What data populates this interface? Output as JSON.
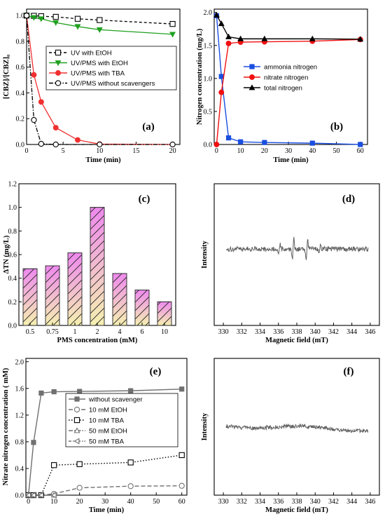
{
  "chart_data": [
    {
      "panel": "(a)",
      "type": "line",
      "xlabel": "Time (min)",
      "ylabel": "[CBZ]/[CBZ]₀",
      "xlim": [
        0,
        21
      ],
      "ylim": [
        0,
        1.05
      ],
      "xticks": [
        0,
        5,
        10,
        15,
        20
      ],
      "yticks": [
        0.0,
        0.2,
        0.4,
        0.6,
        0.8,
        1.0
      ],
      "legend_position": "center-right",
      "series": [
        {
          "name": "UV with EtOH",
          "color": "#000000",
          "marker": "square-open",
          "dash": "4,3",
          "x": [
            0,
            1,
            2,
            4,
            7,
            10,
            20
          ],
          "y": [
            1.0,
            0.998,
            0.995,
            0.99,
            0.975,
            0.965,
            0.935
          ]
        },
        {
          "name": "UV/PMS with EtOH",
          "color": "#20a020",
          "marker": "triangle-down",
          "dash": "",
          "x": [
            0,
            1,
            2,
            4,
            7,
            10,
            20
          ],
          "y": [
            1.0,
            0.985,
            0.975,
            0.945,
            0.915,
            0.89,
            0.855
          ]
        },
        {
          "name": "UV/PMS with TBA",
          "color": "#f03030",
          "marker": "circle-filled",
          "dash": "",
          "x": [
            0,
            1,
            2,
            4,
            7,
            10,
            20
          ],
          "y": [
            1.0,
            0.54,
            0.33,
            0.13,
            0.035,
            0.003,
            0.0
          ]
        },
        {
          "name": "UV/PMS without scavengers",
          "color": "#000000",
          "marker": "circle-open",
          "dash": "6,2,1.5,2",
          "x": [
            0,
            1,
            2,
            4,
            10,
            20
          ],
          "y": [
            1.0,
            0.19,
            0.005,
            0.0,
            0.0,
            0.0
          ]
        }
      ]
    },
    {
      "panel": "(b)",
      "type": "line",
      "xlabel": "Time (min)",
      "ylabel": "Nitrogen concentration (mg/L)",
      "xlim": [
        -1,
        63
      ],
      "ylim": [
        0,
        2.05
      ],
      "xticks": [
        0,
        10,
        20,
        30,
        40,
        50,
        60
      ],
      "yticks": [
        0.0,
        0.5,
        1.0,
        1.5,
        2.0
      ],
      "legend_position": "center-right",
      "series": [
        {
          "name": "ammonia nitrogen",
          "color": "#1a4fe0",
          "marker": "square-filled",
          "x": [
            0,
            2,
            5,
            10,
            20,
            40,
            60
          ],
          "y": [
            1.95,
            1.03,
            0.1,
            0.04,
            0.03,
            0.02,
            0.0
          ]
        },
        {
          "name": "nitrate nitrogen",
          "color": "#f01010",
          "marker": "circle-filled",
          "x": [
            0,
            2,
            5,
            10,
            20,
            40,
            60
          ],
          "y": [
            0.0,
            0.79,
            1.53,
            1.55,
            1.555,
            1.565,
            1.59
          ]
        },
        {
          "name": "total nitrogen",
          "color": "#000000",
          "marker": "triangle-up",
          "x": [
            0,
            2,
            5,
            10,
            20,
            40,
            60
          ],
          "y": [
            1.96,
            1.83,
            1.63,
            1.6,
            1.6,
            1.6,
            1.595
          ]
        }
      ]
    },
    {
      "panel": "(c)",
      "type": "bar",
      "xlabel": "PMS concentration (mM)",
      "ylabel": "ΔTN (mg/L)",
      "ylim": [
        0,
        1.2
      ],
      "yticks": [
        0.0,
        0.2,
        0.4,
        0.6,
        0.8,
        1.0,
        1.2
      ],
      "categories": [
        "0.5",
        "0.75",
        "1",
        "2",
        "4",
        "6",
        "10"
      ],
      "values": [
        0.48,
        0.505,
        0.615,
        1.0,
        0.44,
        0.3,
        0.2
      ],
      "fill_top_color": "#ee88ee",
      "fill_bottom_color": "#f5f0b0"
    },
    {
      "panel": "(d)",
      "type": "line",
      "xlabel": "Magnetic field (mT)",
      "ylabel": "Intensity",
      "xlim": [
        329,
        347
      ],
      "xticks": [
        330,
        332,
        334,
        336,
        338,
        340,
        342,
        344,
        346
      ],
      "signal": "quartet",
      "color": "#606060"
    },
    {
      "panel": "(e)",
      "type": "line",
      "xlabel": "Time (min)",
      "ylabel": "Nitrate nitrogen concentration ( mM)",
      "xlim": [
        -1,
        62
      ],
      "ylim": [
        0,
        2.05
      ],
      "xticks": [
        0,
        10,
        20,
        30,
        40,
        50,
        60
      ],
      "yticks": [
        0.0,
        0.4,
        0.8,
        1.2,
        1.6,
        2.0
      ],
      "legend_position": "center-right",
      "series": [
        {
          "name": "without scavenger",
          "color": "#707070",
          "marker": "square-filled",
          "dash": "",
          "x": [
            0,
            2,
            5,
            10,
            20,
            40,
            60
          ],
          "y": [
            0.0,
            0.79,
            1.53,
            1.55,
            1.555,
            1.565,
            1.59
          ]
        },
        {
          "name": "10 mM EtOH",
          "color": "#707070",
          "marker": "circle-open",
          "dash": "6,3",
          "x": [
            0,
            2,
            5,
            10,
            20,
            40,
            60
          ],
          "y": [
            0.0,
            0.0,
            0.0,
            0.02,
            0.11,
            0.135,
            0.14
          ]
        },
        {
          "name": "10 mM TBA",
          "color": "#000000",
          "marker": "square-open",
          "dash": "1.5,2.5",
          "x": [
            0,
            2,
            5,
            10,
            20,
            40,
            60
          ],
          "y": [
            0.0,
            0.0,
            0.0,
            0.45,
            0.465,
            0.49,
            0.6
          ]
        },
        {
          "name": "50 mM EtOH",
          "color": "#707070",
          "marker": "triangle-up-open",
          "dash": "6,2,1.5,2",
          "x": [
            0,
            2,
            5,
            10
          ],
          "y": [
            0.0,
            0.0,
            0.0,
            0.0
          ]
        },
        {
          "name": "50 mM TBA",
          "color": "#707070",
          "marker": "triangle-left-open",
          "dash": "4,2,1.5,2,1.5,2",
          "x": [
            0,
            2,
            5,
            10
          ],
          "y": [
            0.0,
            0.0,
            0.0,
            0.0
          ]
        }
      ]
    },
    {
      "panel": "(f)",
      "type": "line",
      "xlabel": "Magnetic field (mT)",
      "ylabel": "Intensity",
      "xlim": [
        329,
        347
      ],
      "xticks": [
        330,
        332,
        334,
        336,
        338,
        340,
        342,
        344,
        346
      ],
      "signal": "flat",
      "color": "#606060"
    }
  ]
}
